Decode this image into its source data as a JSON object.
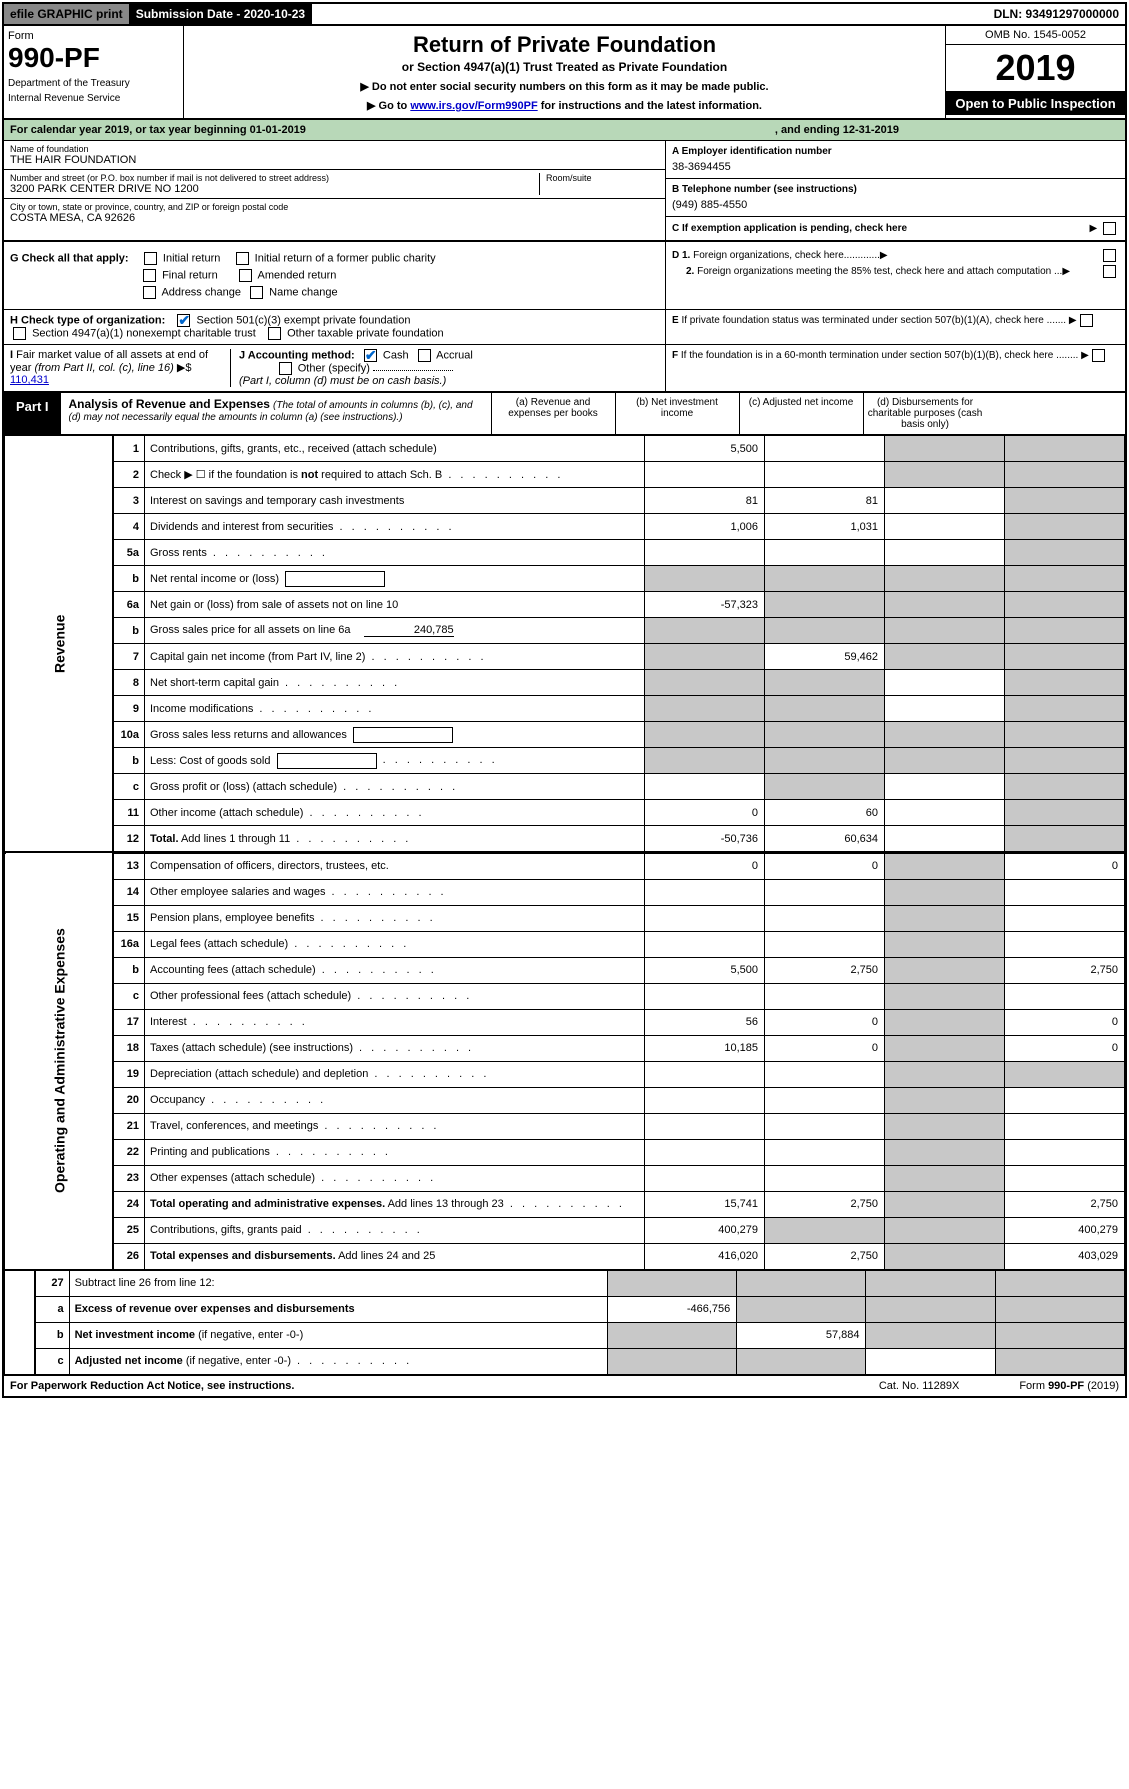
{
  "topbar": {
    "efile": "efile GRAPHIC print",
    "submission": "Submission Date - 2020-10-23",
    "dln": "DLN: 93491297000000"
  },
  "header": {
    "form_word": "Form",
    "form_no": "990-PF",
    "dept1": "Department of the Treasury",
    "dept2": "Internal Revenue Service",
    "title": "Return of Private Foundation",
    "subtitle": "or Section 4947(a)(1) Trust Treated as Private Foundation",
    "note1": "▶ Do not enter social security numbers on this form as it may be made public.",
    "note2_pre": "▶ Go to ",
    "note2_link": "www.irs.gov/Form990PF",
    "note2_post": " for instructions and the latest information.",
    "omb": "OMB No. 1545-0052",
    "year": "2019",
    "open": "Open to Public Inspection"
  },
  "calendar": {
    "text": "For calendar year 2019, or tax year beginning 01-01-2019",
    "ending": ", and ending 12-31-2019"
  },
  "info": {
    "name_lbl": "Name of foundation",
    "name_val": "THE HAIR FOUNDATION",
    "addr_lbl": "Number and street (or P.O. box number if mail is not delivered to street address)",
    "addr_val": "3200 PARK CENTER DRIVE NO 1200",
    "room_lbl": "Room/suite",
    "city_lbl": "City or town, state or province, country, and ZIP or foreign postal code",
    "city_val": "COSTA MESA, CA  92626",
    "ein_lbl": "A Employer identification number",
    "ein_val": "38-3694455",
    "tel_lbl": "B Telephone number (see instructions)",
    "tel_val": "(949) 885-4550",
    "c_lbl": "C If exemption application is pending, check here"
  },
  "g": {
    "label": "G Check all that apply:",
    "initial": "Initial return",
    "initial_former": "Initial return of a former public charity",
    "final": "Final return",
    "amended": "Amended return",
    "address": "Address change",
    "name_change": "Name change"
  },
  "h": {
    "label": "H Check type of organization:",
    "sec501": "Section 501(c)(3) exempt private foundation",
    "sec4947": "Section 4947(a)(1) nonexempt charitable trust",
    "other_taxable": "Other taxable private foundation"
  },
  "i": {
    "label": "I Fair market value of all assets at end of year (from Part II, col. (c), line 16)",
    "val_prefix": "▶$ ",
    "val": "110,431"
  },
  "j": {
    "label": "J Accounting method:",
    "cash": "Cash",
    "accrual": "Accrual",
    "other": "Other (specify)",
    "note": "(Part I, column (d) must be on cash basis.)"
  },
  "d": {
    "d1": "D 1. Foreign organizations, check here.............",
    "d2": "2. Foreign organizations meeting the 85% test, check here and attach computation ...",
    "e": "E  If private foundation status was terminated under section 507(b)(1)(A), check here .......",
    "f": "F  If the foundation is in a 60-month termination under section 507(b)(1)(B), check here ........"
  },
  "part1": {
    "label": "Part I",
    "title": "Analysis of Revenue and Expenses",
    "note": "(The total of amounts in columns (b), (c), and (d) may not necessarily equal the amounts in column (a) (see instructions).)",
    "col_a": "(a)   Revenue and expenses per books",
    "col_b": "(b)  Net investment income",
    "col_c": "(c)  Adjusted net income",
    "col_d": "(d)  Disbursements for charitable purposes (cash basis only)"
  },
  "sections": {
    "revenue": "Revenue",
    "expenses": "Operating and Administrative Expenses"
  },
  "rows": [
    {
      "n": "1",
      "d": "s",
      "a": "5,500",
      "b": "",
      "c": "s"
    },
    {
      "n": "2",
      "d": "s",
      "dots": true,
      "a": "",
      "b": "",
      "c": "s"
    },
    {
      "n": "3",
      "d": "s",
      "a": "81",
      "b": "81",
      "c": ""
    },
    {
      "n": "4",
      "d": "s",
      "dots": true,
      "a": "1,006",
      "b": "1,031",
      "c": ""
    },
    {
      "n": "5a",
      "d": "s",
      "dots": true,
      "a": "",
      "b": "",
      "c": ""
    },
    {
      "n": "b",
      "d": "s",
      "box": true,
      "a": "s",
      "b": "s",
      "c": "s"
    },
    {
      "n": "6a",
      "d": "s",
      "a": "-57,323",
      "b": "s",
      "c": "s"
    },
    {
      "n": "b",
      "d": "s",
      "boxval": "240,785",
      "a": "s",
      "b": "s",
      "c": "s"
    },
    {
      "n": "7",
      "d": "s",
      "dots": true,
      "a": "s",
      "b": "59,462",
      "c": "s"
    },
    {
      "n": "8",
      "d": "s",
      "dots": true,
      "a": "s",
      "b": "s",
      "c": ""
    },
    {
      "n": "9",
      "d": "s",
      "dots": true,
      "a": "s",
      "b": "s",
      "c": ""
    },
    {
      "n": "10a",
      "d": "s",
      "box": true,
      "a": "s",
      "b": "s",
      "c": "s"
    },
    {
      "n": "b",
      "d": "s",
      "dots": true,
      "box": true,
      "a": "s",
      "b": "s",
      "c": "s"
    },
    {
      "n": "c",
      "d": "s",
      "dots": true,
      "a": "",
      "b": "s",
      "c": ""
    },
    {
      "n": "11",
      "d": "s",
      "dots": true,
      "a": "0",
      "b": "60",
      "c": ""
    },
    {
      "n": "12",
      "d": "s",
      "bold": true,
      "dots": true,
      "a": "-50,736",
      "b": "60,634",
      "c": ""
    }
  ],
  "exp_rows": [
    {
      "n": "13",
      "d": "0",
      "a": "0",
      "b": "0",
      "c": "s"
    },
    {
      "n": "14",
      "d": "",
      "dots": true,
      "a": "",
      "b": "",
      "c": "s"
    },
    {
      "n": "15",
      "d": "",
      "dots": true,
      "a": "",
      "b": "",
      "c": "s"
    },
    {
      "n": "16a",
      "d": "",
      "dots": true,
      "a": "",
      "b": "",
      "c": "s"
    },
    {
      "n": "b",
      "d": "2,750",
      "dots": true,
      "a": "5,500",
      "b": "2,750",
      "c": "s"
    },
    {
      "n": "c",
      "d": "",
      "dots": true,
      "a": "",
      "b": "",
      "c": "s"
    },
    {
      "n": "17",
      "d": "0",
      "dots": true,
      "a": "56",
      "b": "0",
      "c": "s"
    },
    {
      "n": "18",
      "d": "0",
      "dots": true,
      "a": "10,185",
      "b": "0",
      "c": "s"
    },
    {
      "n": "19",
      "d": "s",
      "dots": true,
      "a": "",
      "b": "",
      "c": "s"
    },
    {
      "n": "20",
      "d": "",
      "dots": true,
      "a": "",
      "b": "",
      "c": "s"
    },
    {
      "n": "21",
      "d": "",
      "dots": true,
      "a": "",
      "b": "",
      "c": "s"
    },
    {
      "n": "22",
      "d": "",
      "dots": true,
      "a": "",
      "b": "",
      "c": "s"
    },
    {
      "n": "23",
      "d": "",
      "dots": true,
      "a": "",
      "b": "",
      "c": "s"
    },
    {
      "n": "24",
      "d": "2,750",
      "bold": true,
      "dots": true,
      "a": "15,741",
      "b": "2,750",
      "c": "s"
    },
    {
      "n": "25",
      "d": "400,279",
      "dots": true,
      "a": "400,279",
      "b": "s",
      "c": "s"
    },
    {
      "n": "26",
      "d": "403,029",
      "bold": true,
      "a": "416,020",
      "b": "2,750",
      "c": "s"
    }
  ],
  "final_rows": [
    {
      "n": "27",
      "d": "s",
      "a": "s",
      "b": "s",
      "c": "s"
    },
    {
      "n": "a",
      "d": "s",
      "bold": true,
      "a": "-466,756",
      "b": "s",
      "c": "s"
    },
    {
      "n": "b",
      "d": "s",
      "bold": true,
      "a": "s",
      "b": "57,884",
      "c": "s"
    },
    {
      "n": "c",
      "d": "s",
      "bold": true,
      "dots": true,
      "a": "s",
      "b": "s",
      "c": ""
    }
  ],
  "footer": {
    "paperwork": "For Paperwork Reduction Act Notice, see instructions.",
    "cat": "Cat. No. 11289X",
    "form": "Form 990-PF (2019)"
  },
  "colors": {
    "green_bg": "#b8d8b8",
    "shaded": "#c8c8c8",
    "link": "#0000cc",
    "check": "#0066cc"
  }
}
